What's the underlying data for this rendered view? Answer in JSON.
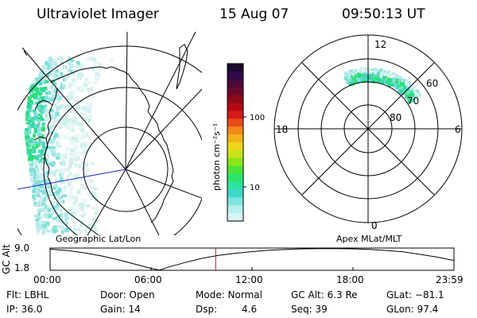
{
  "header": {
    "title": "Ultraviolet Imager",
    "date": "15 Aug 07",
    "time": "09:50:13 UT"
  },
  "left_map": {
    "label": "Geographic Lat/Lon"
  },
  "right_map": {
    "label": "Apex MLat/MLT",
    "mlt_labels": [
      "12",
      "18",
      "6",
      "0"
    ],
    "mlat_labels": [
      "60",
      "70",
      "80"
    ]
  },
  "colorbar": {
    "unit_label": "photon cm⁻²s⁻¹",
    "tick_labels": [
      "100",
      "10"
    ],
    "colors": [
      "#1a0a2e",
      "#2e0a4a",
      "#4a0a3a",
      "#6a0a2a",
      "#8a0a1a",
      "#b00a14",
      "#d41a1a",
      "#e84a1a",
      "#f08a1a",
      "#f4b41a",
      "#ecd81a",
      "#c8e41a",
      "#8ce41a",
      "#4ce43a",
      "#2ce46a",
      "#2ce4a0",
      "#40d8c8",
      "#80e4e0",
      "#b4eeee",
      "#d8f4f4"
    ]
  },
  "altitude_plot": {
    "ylabel": "GC Alt",
    "y_ticks": [
      "9.0",
      "1.8"
    ],
    "x_ticks": [
      "00:00",
      "06:00",
      "12:00",
      "18:00",
      "23:59"
    ],
    "current_marker_color": "#d01010"
  },
  "status": {
    "flt": "Flt: LBHL",
    "ip": "IP: 36.0",
    "door": "Door: Open",
    "gain": "Gain: 14",
    "mode": "Mode: Normal",
    "dsp": "Dsp:",
    "dsp_value": "4.6",
    "gc_alt": "GC Alt: 6.3 Re",
    "seq": "Seq: 39",
    "glat": "GLat: −81.1",
    "glon": "GLon: 97.4"
  },
  "chart_data": {
    "type": "line",
    "title": "",
    "xlabel": "",
    "ylabel": "GC Alt",
    "x_ticks": [
      "00:00",
      "06:00",
      "12:00",
      "18:00",
      "23:59"
    ],
    "y_ticks": [
      1.8,
      9.0
    ],
    "series": [
      {
        "x": [
          0,
          1,
          2,
          3,
          4,
          5,
          6,
          6.5,
          7,
          8,
          9,
          10,
          11,
          12,
          13,
          14,
          15,
          16,
          17,
          18,
          19,
          20,
          21,
          22,
          23,
          24
        ],
        "y": [
          9.2,
          8.7,
          7.9,
          6.8,
          5.4,
          3.8,
          2.2,
          1.6,
          2.6,
          4.3,
          5.8,
          6.9,
          7.7,
          8.3,
          8.8,
          9.1,
          9.3,
          9.4,
          9.4,
          9.3,
          9.1,
          8.7,
          8.2,
          7.3,
          6.3,
          5.1
        ]
      }
    ],
    "current_time_hours": 9.84
  }
}
